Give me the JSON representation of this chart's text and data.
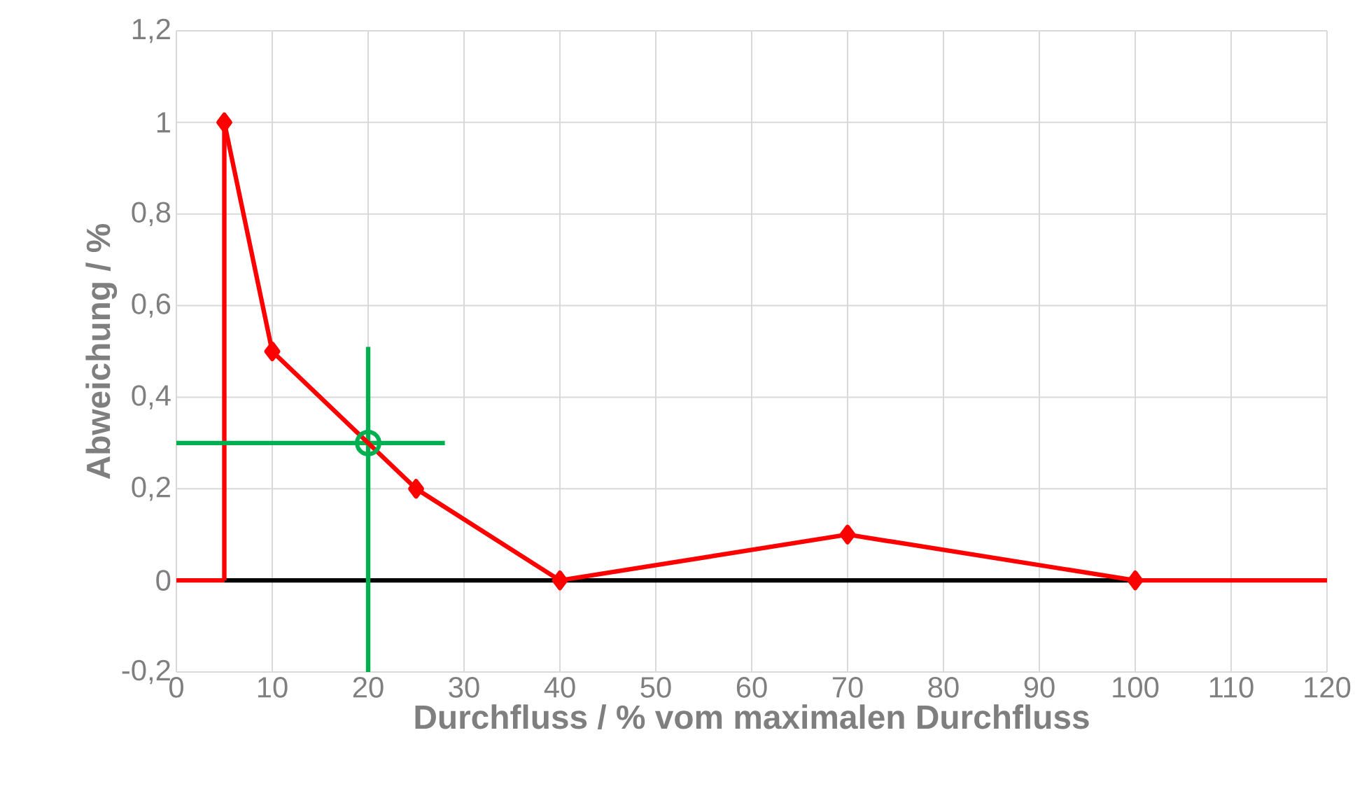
{
  "chart_data": {
    "type": "line",
    "xlabel": "Durchfluss  /  % vom maximalen Durchfluss",
    "ylabel": "Abweichung  /  %",
    "xlim": [
      0,
      120
    ],
    "ylim": [
      -0.2,
      1.2
    ],
    "xticks": [
      0,
      10,
      20,
      30,
      40,
      50,
      60,
      70,
      80,
      90,
      100,
      110,
      120
    ],
    "yticks": [
      {
        "value": -0.2,
        "label": "-0,2"
      },
      0,
      {
        "value": 0.2,
        "label": "0,2"
      },
      {
        "value": 0.4,
        "label": "0,4"
      },
      {
        "value": 0.6,
        "label": "0,6"
      },
      {
        "value": 0.8,
        "label": "0,8"
      },
      1,
      {
        "value": 1.2,
        "label": "1,2"
      }
    ],
    "grid": true,
    "series": [
      {
        "color": "#ff0000",
        "x": [
          0,
          5
        ],
        "values": [
          0,
          0
        ],
        "line_style": "solid"
      },
      {
        "color": "#ff0000",
        "x": [
          100,
          120
        ],
        "values": [
          0,
          0
        ],
        "line_style": "solid"
      },
      {
        "color": "#000000",
        "x": [
          5,
          100
        ],
        "values": [
          0,
          0
        ],
        "line_style": "solid"
      },
      {
        "color": "#ff0000",
        "x": [
          5,
          5
        ],
        "values": [
          0,
          1
        ],
        "line_style": "solid"
      },
      {
        "color": "#00b050",
        "x": [
          0,
          28
        ],
        "values": [
          0.3,
          0.3
        ],
        "line_style": "solid"
      },
      {
        "color": "#00b050",
        "x": [
          20,
          20
        ],
        "values": [
          -0.2,
          0.51
        ],
        "line_style": "solid"
      },
      {
        "color": "#ff0000",
        "x": [
          5,
          10,
          25,
          40,
          70,
          100
        ],
        "values": [
          1,
          0.5,
          0.2,
          0,
          0.1,
          0
        ],
        "marker": "diamond",
        "line_style": "solid"
      },
      {
        "type": "scatter",
        "color": "#00b050",
        "x": [
          20
        ],
        "values": [
          0.3
        ],
        "marker": "circle"
      }
    ]
  }
}
